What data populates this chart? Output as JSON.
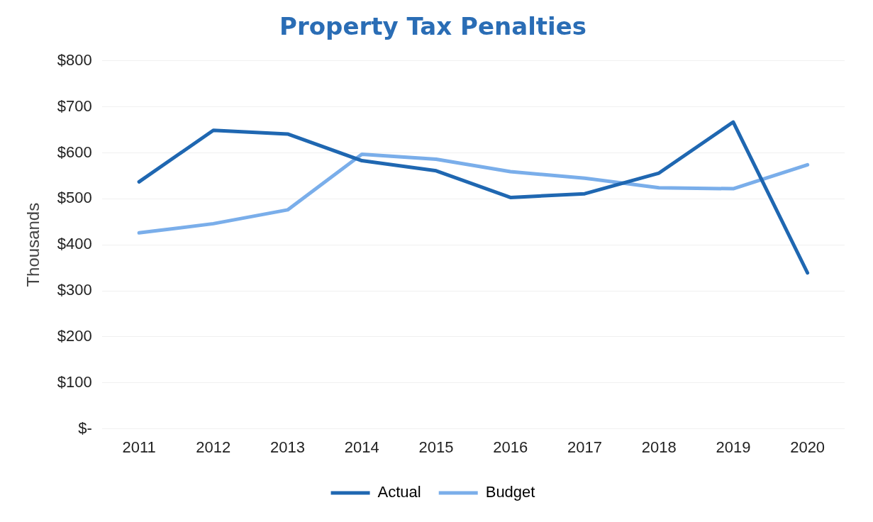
{
  "chart_data": {
    "type": "line",
    "title": "Property Tax Penalties",
    "ylabel": "Thousands",
    "categories": [
      "2011",
      "2012",
      "2013",
      "2014",
      "2015",
      "2016",
      "2017",
      "2018",
      "2019",
      "2020"
    ],
    "series": [
      {
        "name": "Actual",
        "color": "#1f67b1",
        "values": [
          537,
          649,
          641,
          583,
          561,
          503,
          511,
          556,
          667,
          339
        ]
      },
      {
        "name": "Budget",
        "color": "#7aaeea",
        "values": [
          426,
          446,
          476,
          597,
          586,
          559,
          545,
          524,
          522,
          574
        ]
      }
    ],
    "ylim": [
      0,
      800
    ],
    "yticks": [
      {
        "value": 0,
        "label": "$-"
      },
      {
        "value": 100,
        "label": "$100"
      },
      {
        "value": 200,
        "label": "$200"
      },
      {
        "value": 300,
        "label": "$300"
      },
      {
        "value": 400,
        "label": "$400"
      },
      {
        "value": 500,
        "label": "$500"
      },
      {
        "value": 600,
        "label": "$600"
      },
      {
        "value": 700,
        "label": "$700"
      },
      {
        "value": 800,
        "label": "$800"
      }
    ],
    "grid": "y",
    "legend": "bottom",
    "marker": "none",
    "line_style": "solid"
  }
}
